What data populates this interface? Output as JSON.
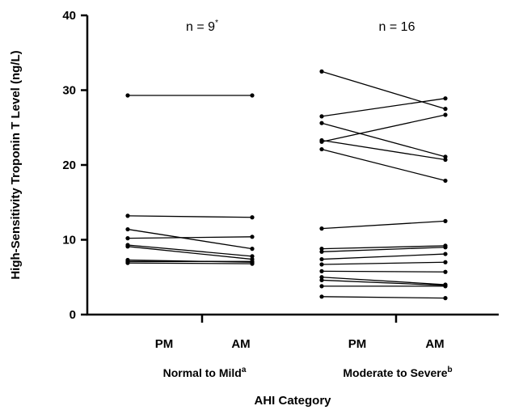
{
  "chart_data": {
    "type": "line",
    "xlabel": "AHI Category",
    "ylabel": "High-Sensitivity Troponin T Level (ng/L)",
    "ylim": [
      0,
      40
    ],
    "yticks": [
      "0",
      "10",
      "20",
      "30",
      "40"
    ],
    "grid": false,
    "groups": [
      {
        "name": "Normal to Mild",
        "superscript": "a",
        "timepoints": [
          "PM",
          "AM"
        ],
        "annotation": "n = 9",
        "annotation_superscript": "*",
        "pairs": [
          [
            29.3,
            29.3
          ],
          [
            13.2,
            13.0
          ],
          [
            11.4,
            8.8
          ],
          [
            10.2,
            10.4
          ],
          [
            9.3,
            7.8
          ],
          [
            9.1,
            7.4
          ],
          [
            7.3,
            7.0
          ],
          [
            7.1,
            7.1
          ],
          [
            6.9,
            6.8
          ]
        ]
      },
      {
        "name": "Moderate to Severe",
        "superscript": "b",
        "timepoints": [
          "PM",
          "AM"
        ],
        "annotation": "n = 16",
        "annotation_superscript": "",
        "pairs": [
          [
            32.5,
            27.5
          ],
          [
            26.5,
            28.9
          ],
          [
            25.6,
            21.1
          ],
          [
            23.3,
            20.7
          ],
          [
            23.1,
            26.7
          ],
          [
            22.1,
            17.9
          ],
          [
            11.5,
            12.5
          ],
          [
            8.8,
            9.2
          ],
          [
            8.4,
            9.0
          ],
          [
            7.4,
            8.1
          ],
          [
            6.7,
            7.0
          ],
          [
            5.8,
            5.7
          ],
          [
            5.0,
            4.0
          ],
          [
            4.6,
            3.9
          ],
          [
            3.8,
            3.8
          ],
          [
            2.4,
            2.2
          ]
        ]
      }
    ]
  }
}
